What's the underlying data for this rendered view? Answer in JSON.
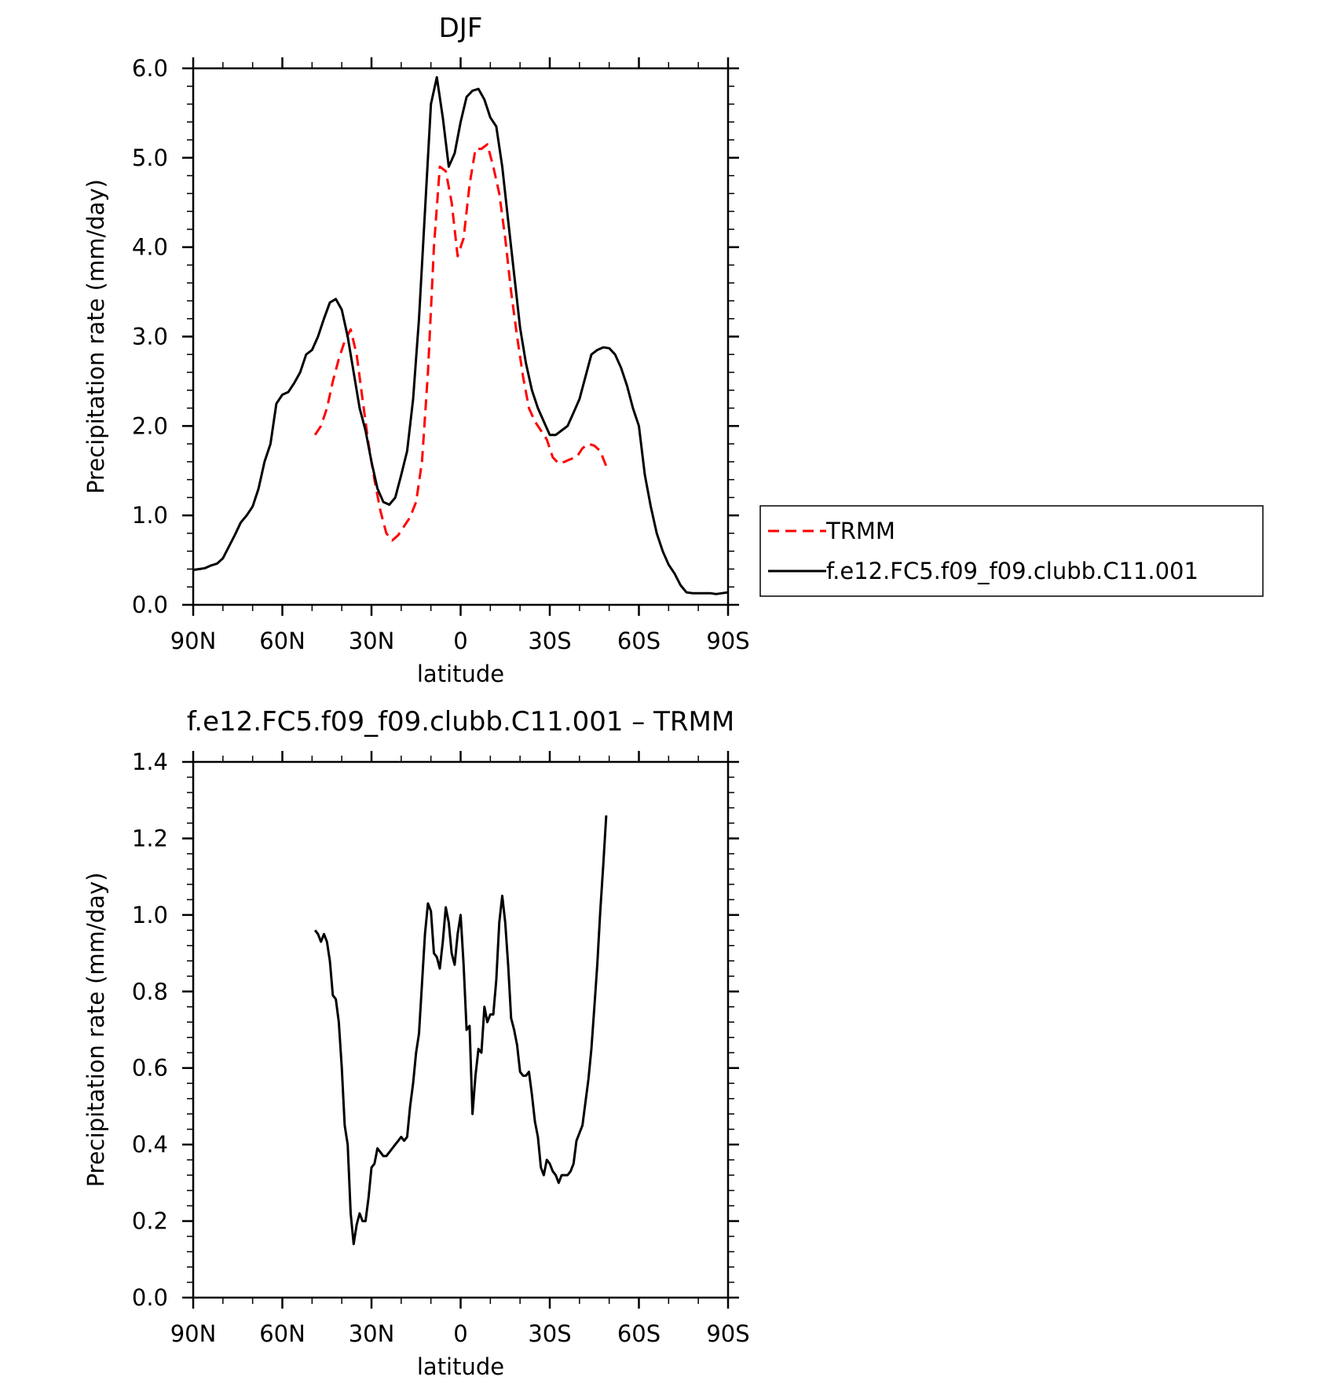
{
  "chart_data": [
    {
      "type": "line",
      "title": "DJF",
      "xlabel": "latitude",
      "ylabel": "Precipitation rate (mm/day)",
      "xlim": [
        90,
        -90
      ],
      "ylim": [
        0,
        6
      ],
      "xticks": [
        90,
        60,
        30,
        0,
        -30,
        -60,
        -90
      ],
      "xticklabels": [
        "90N",
        "60N",
        "30N",
        "0",
        "30S",
        "60S",
        "90S"
      ],
      "yticks": [
        0,
        1,
        2,
        3,
        4,
        5,
        6
      ],
      "yticklabels": [
        "0.0",
        "1.0",
        "2.0",
        "3.0",
        "4.0",
        "5.0",
        "6.0"
      ],
      "legend_position": "right",
      "series": [
        {
          "name": "TRMM",
          "color": "#ff0000",
          "dash": "dashed",
          "x": [
            49,
            47,
            45,
            43,
            41,
            39,
            37,
            35,
            33,
            31,
            29,
            27,
            25,
            23,
            21,
            19,
            17,
            15,
            13,
            11,
            9,
            7,
            5,
            3,
            1,
            -1,
            -3,
            -5,
            -7,
            -9,
            -11,
            -13,
            -15,
            -17,
            -19,
            -21,
            -23,
            -25,
            -27,
            -29,
            -31,
            -33,
            -35,
            -37,
            -39,
            -41,
            -43,
            -45,
            -47,
            -49
          ],
          "y": [
            1.9,
            2.0,
            2.2,
            2.5,
            2.75,
            2.95,
            3.08,
            2.8,
            2.3,
            1.8,
            1.4,
            1.05,
            0.8,
            0.72,
            0.78,
            0.88,
            0.98,
            1.15,
            1.6,
            2.6,
            4.0,
            4.9,
            4.85,
            4.5,
            3.9,
            4.1,
            4.7,
            5.1,
            5.1,
            5.15,
            4.9,
            4.6,
            4.1,
            3.5,
            3.0,
            2.55,
            2.2,
            2.05,
            1.95,
            1.85,
            1.65,
            1.58,
            1.6,
            1.63,
            1.65,
            1.75,
            1.8,
            1.78,
            1.72,
            1.55
          ]
        },
        {
          "name": "f.e12.FC5.f09_f09.clubb.C11.001",
          "color": "#000000",
          "dash": "solid",
          "x": [
            90,
            88,
            86,
            84,
            82,
            80,
            78,
            76,
            74,
            72,
            70,
            68,
            66,
            64,
            62,
            60,
            58,
            56,
            54,
            52,
            50,
            48,
            46,
            44,
            42,
            40,
            38,
            36,
            34,
            32,
            30,
            28,
            26,
            24,
            22,
            20,
            18,
            16,
            14,
            12,
            10,
            8,
            6,
            4,
            2,
            0,
            -2,
            -4,
            -6,
            -8,
            -10,
            -12,
            -14,
            -16,
            -18,
            -20,
            -22,
            -24,
            -26,
            -28,
            -30,
            -32,
            -34,
            -36,
            -38,
            -40,
            -42,
            -44,
            -46,
            -48,
            -50,
            -52,
            -54,
            -56,
            -58,
            -60,
            -62,
            -64,
            -66,
            -68,
            -70,
            -72,
            -74,
            -76,
            -78,
            -80,
            -82,
            -84,
            -86,
            -88,
            -90
          ],
          "y": [
            0.39,
            0.4,
            0.41,
            0.44,
            0.46,
            0.52,
            0.65,
            0.78,
            0.92,
            1.0,
            1.1,
            1.3,
            1.6,
            1.8,
            2.25,
            2.35,
            2.38,
            2.48,
            2.6,
            2.8,
            2.85,
            3.0,
            3.2,
            3.38,
            3.42,
            3.3,
            3.0,
            2.6,
            2.2,
            1.95,
            1.6,
            1.3,
            1.15,
            1.12,
            1.2,
            1.45,
            1.72,
            2.3,
            3.2,
            4.4,
            5.6,
            5.9,
            5.45,
            4.9,
            5.05,
            5.4,
            5.68,
            5.75,
            5.77,
            5.65,
            5.45,
            5.35,
            4.9,
            4.3,
            3.7,
            3.1,
            2.7,
            2.4,
            2.2,
            2.05,
            1.9,
            1.9,
            1.95,
            2.0,
            2.15,
            2.3,
            2.55,
            2.8,
            2.85,
            2.88,
            2.87,
            2.8,
            2.65,
            2.45,
            2.2,
            2.0,
            1.45,
            1.1,
            0.8,
            0.6,
            0.45,
            0.35,
            0.22,
            0.14,
            0.13,
            0.13,
            0.13,
            0.13,
            0.12,
            0.13,
            0.14
          ]
        }
      ]
    },
    {
      "type": "line",
      "title": "f.e12.FC5.f09_f09.clubb.C11.001 – TRMM",
      "xlabel": "latitude",
      "ylabel": "Precipitation rate (mm/day)",
      "xlim": [
        90,
        -90
      ],
      "ylim": [
        0,
        1.4
      ],
      "xticks": [
        90,
        60,
        30,
        0,
        -30,
        -60,
        -90
      ],
      "xticklabels": [
        "90N",
        "60N",
        "30N",
        "0",
        "30S",
        "60S",
        "90S"
      ],
      "yticks": [
        0,
        0.2,
        0.4,
        0.6,
        0.8,
        1.0,
        1.2,
        1.4
      ],
      "yticklabels": [
        "0.0",
        "0.2",
        "0.4",
        "0.6",
        "0.8",
        "1.0",
        "1.2",
        "1.4"
      ],
      "series": [
        {
          "color": "#000000",
          "dash": "solid",
          "x": [
            49,
            48,
            47,
            46,
            45,
            44,
            43,
            42,
            41,
            40,
            39,
            38,
            37,
            36,
            35,
            34,
            33,
            32,
            31,
            30,
            29,
            28,
            27,
            26,
            25,
            24,
            23,
            22,
            21,
            20,
            19,
            18,
            17,
            16,
            15,
            14,
            13,
            12,
            11,
            10,
            9,
            8,
            7,
            6,
            5,
            4,
            3,
            2,
            1,
            0,
            -1,
            -2,
            -3,
            -4,
            -5,
            -6,
            -7,
            -8,
            -9,
            -10,
            -11,
            -12,
            -13,
            -14,
            -15,
            -16,
            -17,
            -18,
            -19,
            -20,
            -21,
            -22,
            -23,
            -24,
            -25,
            -26,
            -27,
            -28,
            -29,
            -30,
            -31,
            -32,
            -33,
            -34,
            -35,
            -36,
            -37,
            -38,
            -39,
            -40,
            -41,
            -42,
            -43,
            -44,
            -45,
            -46,
            -47,
            -48,
            -49
          ],
          "y": [
            0.96,
            0.95,
            0.93,
            0.95,
            0.93,
            0.88,
            0.79,
            0.78,
            0.72,
            0.6,
            0.45,
            0.4,
            0.22,
            0.14,
            0.19,
            0.22,
            0.2,
            0.2,
            0.26,
            0.34,
            0.35,
            0.39,
            0.38,
            0.37,
            0.37,
            0.38,
            0.39,
            0.4,
            0.41,
            0.42,
            0.41,
            0.42,
            0.5,
            0.56,
            0.64,
            0.69,
            0.82,
            0.95,
            1.03,
            1.01,
            0.9,
            0.89,
            0.86,
            0.93,
            1.02,
            0.98,
            0.9,
            0.87,
            0.95,
            1.0,
            0.87,
            0.7,
            0.71,
            0.48,
            0.58,
            0.65,
            0.64,
            0.76,
            0.72,
            0.74,
            0.74,
            0.83,
            0.98,
            1.05,
            0.98,
            0.87,
            0.73,
            0.7,
            0.66,
            0.59,
            0.58,
            0.58,
            0.59,
            0.53,
            0.46,
            0.42,
            0.34,
            0.32,
            0.36,
            0.35,
            0.33,
            0.32,
            0.3,
            0.32,
            0.32,
            0.32,
            0.33,
            0.35,
            0.41,
            0.43,
            0.45,
            0.51,
            0.57,
            0.65,
            0.76,
            0.87,
            1.01,
            1.13,
            1.26
          ]
        }
      ]
    }
  ]
}
